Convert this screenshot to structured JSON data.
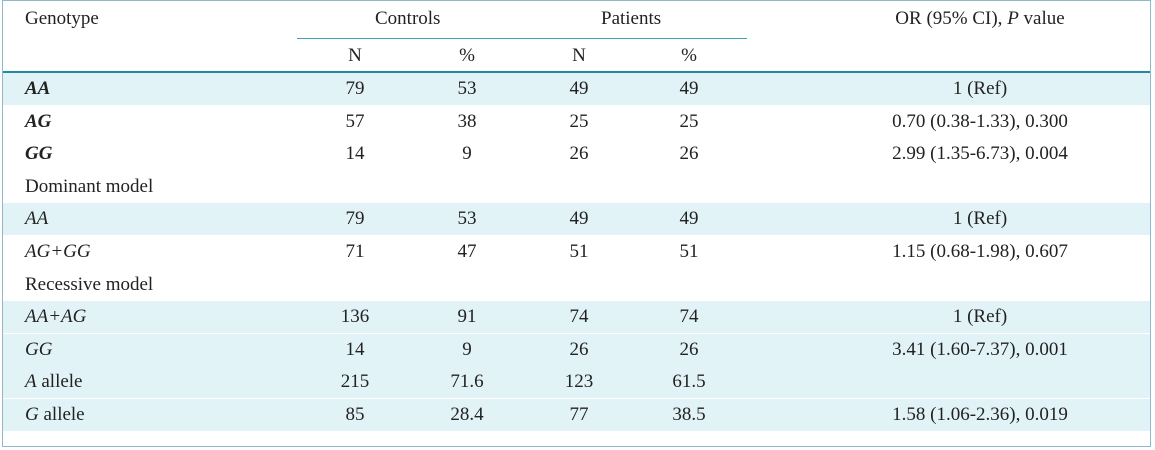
{
  "header": {
    "genotype": "Genotype",
    "controls": "Controls",
    "patients": "Patients",
    "or_prefix": "OR (95% CI),",
    "or_p": "P",
    "or_suffix": "value",
    "n1": "N",
    "pct1": "%",
    "n2": "N",
    "pct2": "%"
  },
  "rows": [
    {
      "type": "data",
      "label": "AA",
      "style": "bold-italic",
      "cn": "79",
      "cp": "53",
      "pn": "49",
      "pp": "49",
      "or": "1 (Ref)",
      "shade": true
    },
    {
      "type": "data",
      "label": "AG",
      "style": "bold-italic",
      "cn": "57",
      "cp": "38",
      "pn": "25",
      "pp": "25",
      "or": "0.70 (0.38-1.33), 0.300",
      "shade": false
    },
    {
      "type": "data",
      "label": "GG",
      "style": "bold-italic",
      "cn": "14",
      "cp": "9",
      "pn": "26",
      "pp": "26",
      "or": "2.99 (1.35-6.73), 0.004",
      "shade": false
    },
    {
      "type": "section",
      "label": "Dominant model",
      "shade": false
    },
    {
      "type": "data",
      "label": "AA",
      "style": "italic",
      "cn": "79",
      "cp": "53",
      "pn": "49",
      "pp": "49",
      "or": "1 (Ref)",
      "shade": true
    },
    {
      "type": "data",
      "label": "AG+GG",
      "style": "italic",
      "cn": "71",
      "cp": "47",
      "pn": "51",
      "pp": "51",
      "or": "1.15 (0.68-1.98), 0.607",
      "shade": false
    },
    {
      "type": "section",
      "label": "Recessive model",
      "shade": false
    },
    {
      "type": "data",
      "label": "AA+AG",
      "style": "italic",
      "cn": "136",
      "cp": "91",
      "pn": "74",
      "pp": "74",
      "or": "1 (Ref)",
      "shade": true
    },
    {
      "type": "data",
      "label": "GG",
      "style": "italic",
      "cn": "14",
      "cp": "9",
      "pn": "26",
      "pp": "26",
      "or": "3.41 (1.60-7.37), 0.001",
      "shade": true
    },
    {
      "type": "data",
      "label": "A",
      "label_suffix": " allele",
      "style": "italic",
      "cn": "215",
      "cp": "71.6",
      "pn": "123",
      "pp": "61.5",
      "or": "",
      "shade": true
    },
    {
      "type": "data",
      "label": "G",
      "label_suffix": " allele",
      "style": "italic",
      "cn": "85",
      "cp": "28.4",
      "pn": "77",
      "pp": "38.5",
      "or": "1.58 (1.06-2.36), 0.019",
      "shade": true
    }
  ]
}
